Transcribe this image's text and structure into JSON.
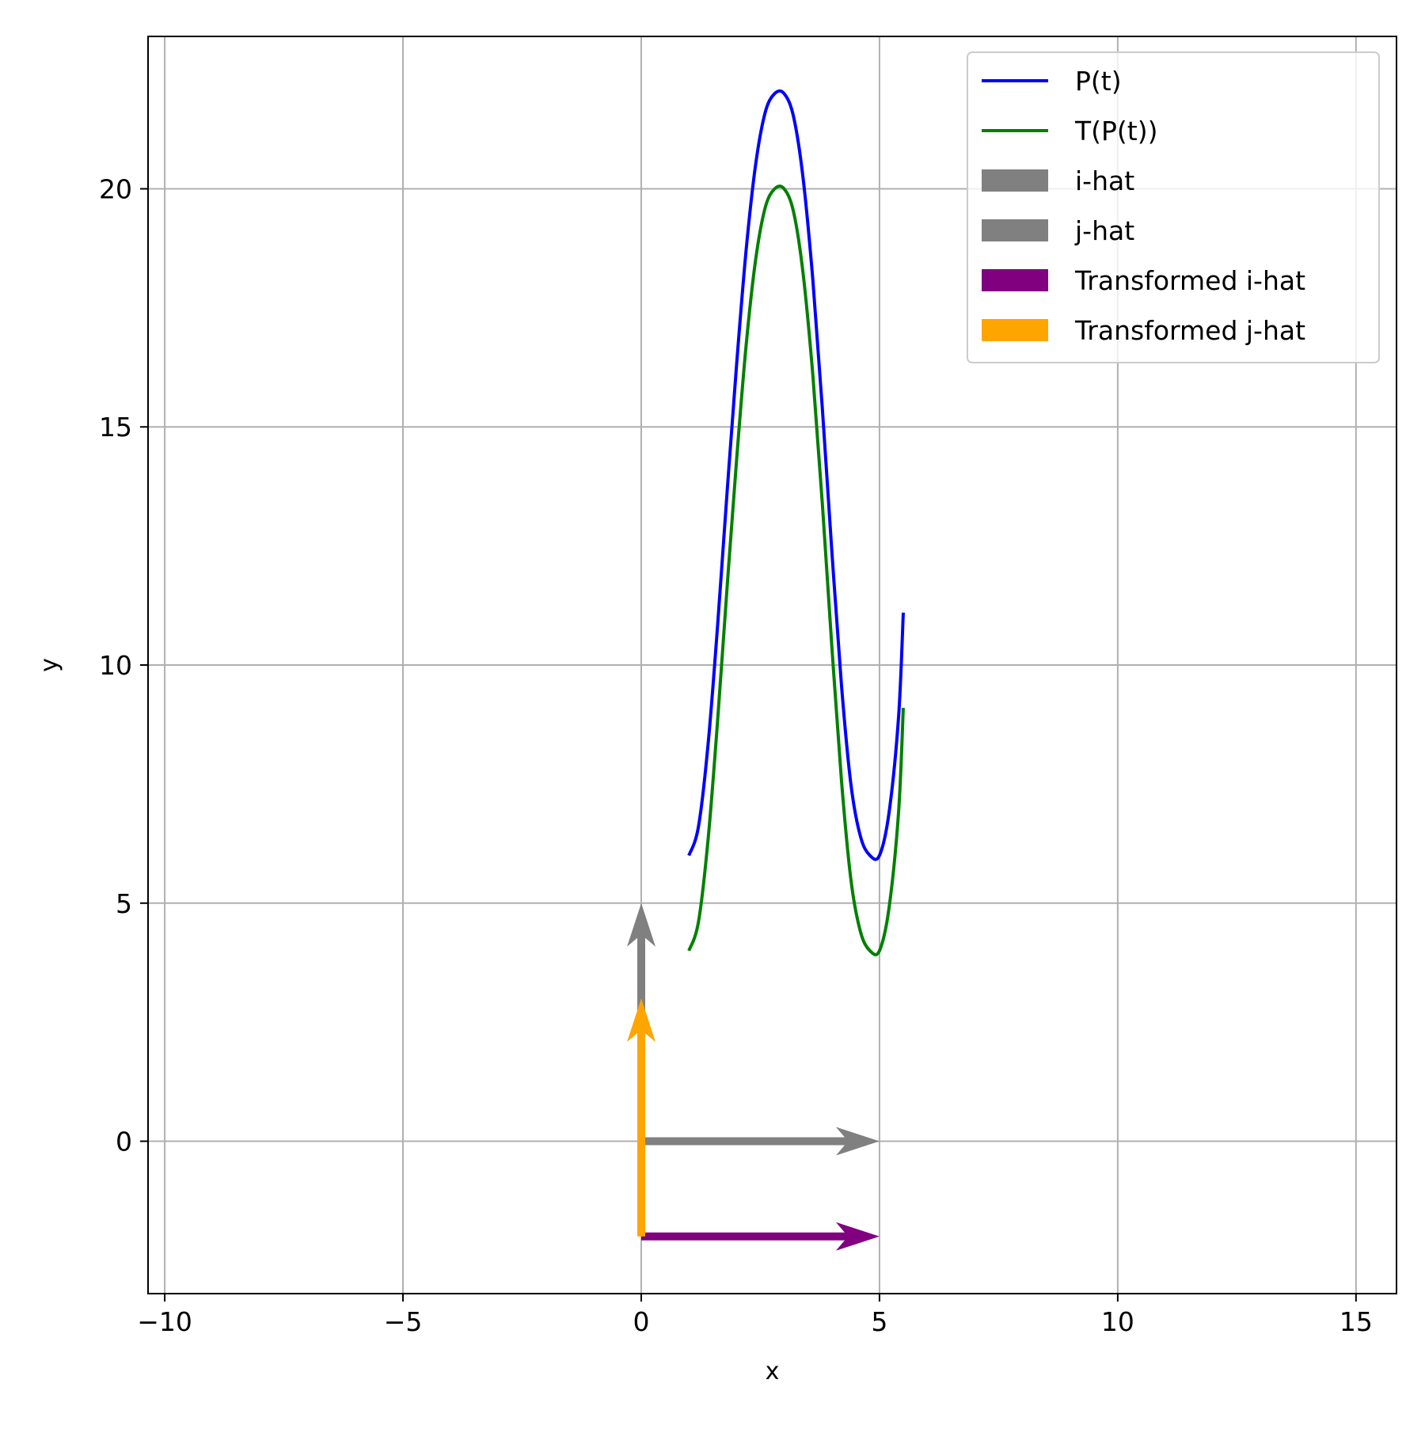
{
  "chart_data": {
    "type": "line",
    "title": "",
    "xlabel": "x",
    "ylabel": "y",
    "xlim": [
      -10.35,
      15.85
    ],
    "ylim": [
      -3.2,
      23.2
    ],
    "xticks": [
      -10,
      -5,
      0,
      5,
      10,
      15
    ],
    "xtick_labels": [
      "−10",
      "−5",
      "0",
      "5",
      "10",
      "15"
    ],
    "yticks": [
      0,
      5,
      10,
      15,
      20
    ],
    "ytick_labels": [
      "0",
      "5",
      "10",
      "15",
      "20"
    ],
    "grid": true,
    "legend_position": "top-right",
    "series": [
      {
        "name": "P(t)",
        "kind": "line",
        "color": "#0000ff",
        "x": [
          1.0,
          1.2,
          1.4,
          1.6,
          1.8,
          2.0,
          2.2,
          2.4,
          2.6,
          2.8,
          3.0,
          3.2,
          3.4,
          3.6,
          3.8,
          4.0,
          4.2,
          4.4,
          4.6,
          4.8,
          5.0,
          5.2,
          5.4,
          5.5
        ],
        "y": [
          6.0,
          6.6,
          8.3,
          10.8,
          13.6,
          16.3,
          18.7,
          20.5,
          21.6,
          22.0,
          22.0,
          21.5,
          20.2,
          18.1,
          15.4,
          12.4,
          9.6,
          7.5,
          6.4,
          6.0,
          6.0,
          6.9,
          8.9,
          11.1
        ]
      },
      {
        "name": "T(P(t))",
        "kind": "line",
        "color": "#008000",
        "x": [
          1.0,
          1.2,
          1.4,
          1.6,
          1.8,
          2.0,
          2.2,
          2.4,
          2.6,
          2.8,
          3.0,
          3.2,
          3.4,
          3.6,
          3.8,
          4.0,
          4.2,
          4.4,
          4.6,
          4.8,
          5.0,
          5.2,
          5.4,
          5.5
        ],
        "y": [
          4.0,
          4.6,
          6.3,
          8.8,
          11.6,
          14.3,
          16.7,
          18.5,
          19.6,
          20.0,
          20.0,
          19.5,
          18.2,
          16.1,
          13.4,
          10.4,
          7.6,
          5.5,
          4.4,
          4.0,
          4.0,
          4.9,
          6.9,
          9.1
        ]
      }
    ],
    "vectors": [
      {
        "name": "i-hat",
        "color": "#808080",
        "x0": 0,
        "y0": 0,
        "dx": 5,
        "dy": 0
      },
      {
        "name": "j-hat",
        "color": "#808080",
        "x0": 0,
        "y0": 0,
        "dx": 0,
        "dy": 5
      },
      {
        "name": "Transformed i-hat",
        "color": "#800080",
        "x0": 0,
        "y0": -2,
        "dx": 5,
        "dy": 0
      },
      {
        "name": "Transformed j-hat",
        "color": "#ffa500",
        "x0": 0,
        "y0": -2,
        "dx": 0,
        "dy": 5
      }
    ],
    "legend": [
      {
        "label": "P(t)",
        "kind": "line",
        "color": "#0000ff"
      },
      {
        "label": "T(P(t))",
        "kind": "line",
        "color": "#008000"
      },
      {
        "label": "i-hat",
        "kind": "patch",
        "color": "#808080"
      },
      {
        "label": "j-hat",
        "kind": "patch",
        "color": "#808080"
      },
      {
        "label": "Transformed i-hat",
        "kind": "patch",
        "color": "#800080"
      },
      {
        "label": "Transformed j-hat",
        "kind": "patch",
        "color": "#ffa500"
      }
    ]
  }
}
